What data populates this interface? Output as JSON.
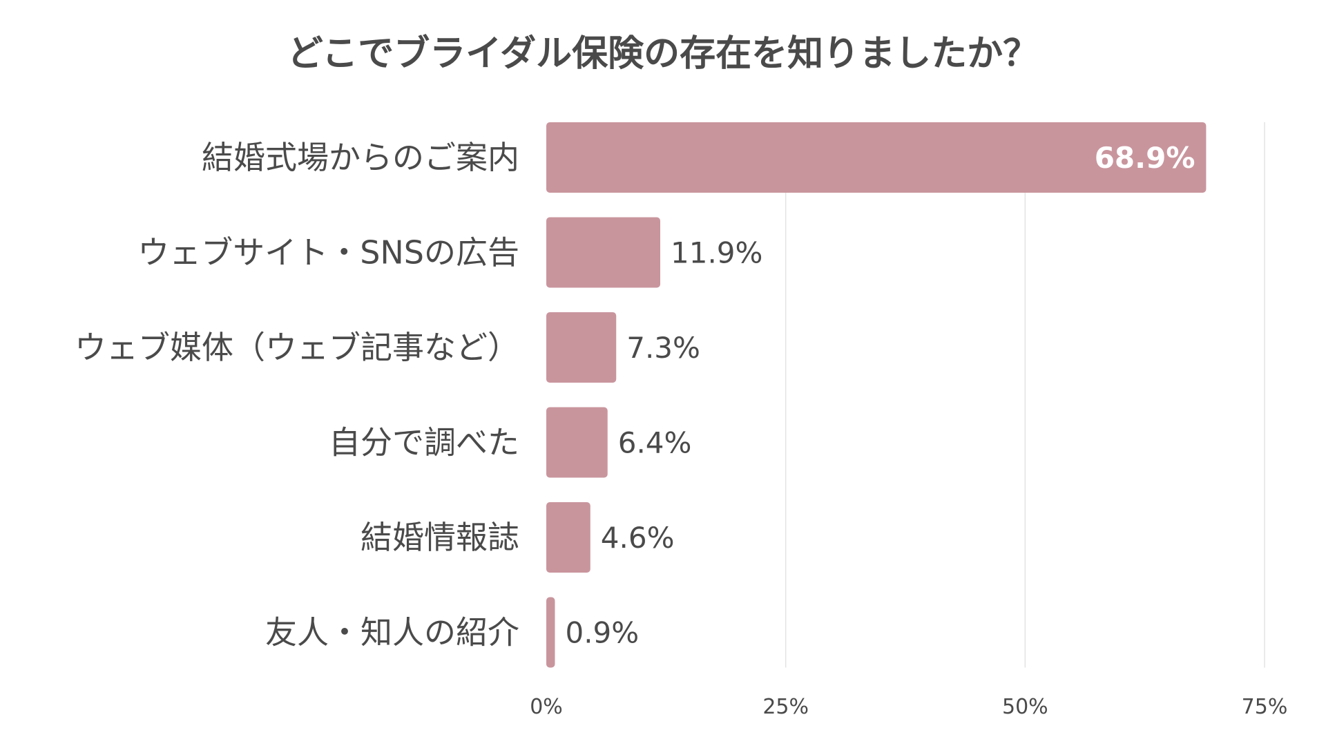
{
  "chart_data": {
    "type": "bar",
    "orientation": "horizontal",
    "title": "どこでブライダル保険の存在を知りましたか？",
    "categories": [
      "結婚式場からのご案内",
      "ウェブサイト・SNSの広告",
      "ウェブ媒体（ウェブ記事など）",
      "自分で調べた",
      "結婚情報誌",
      "友人・知人の紹介"
    ],
    "values": [
      68.9,
      11.9,
      7.3,
      6.4,
      4.6,
      0.9
    ],
    "value_labels": [
      "68.9%",
      "11.9%",
      "7.3%",
      "6.4%",
      "4.6%",
      "0.9%"
    ],
    "xlim": [
      0,
      75
    ],
    "xticks": [
      0,
      25,
      50,
      75
    ],
    "xtick_labels": [
      "0%",
      "25%",
      "50%",
      "75%"
    ],
    "xlabel": "",
    "ylabel": "",
    "grid": "vertical",
    "legend": "none",
    "bar_color": "#c9959d",
    "text_color": "#4a4a4a",
    "grid_color": "#e3e3e3"
  }
}
